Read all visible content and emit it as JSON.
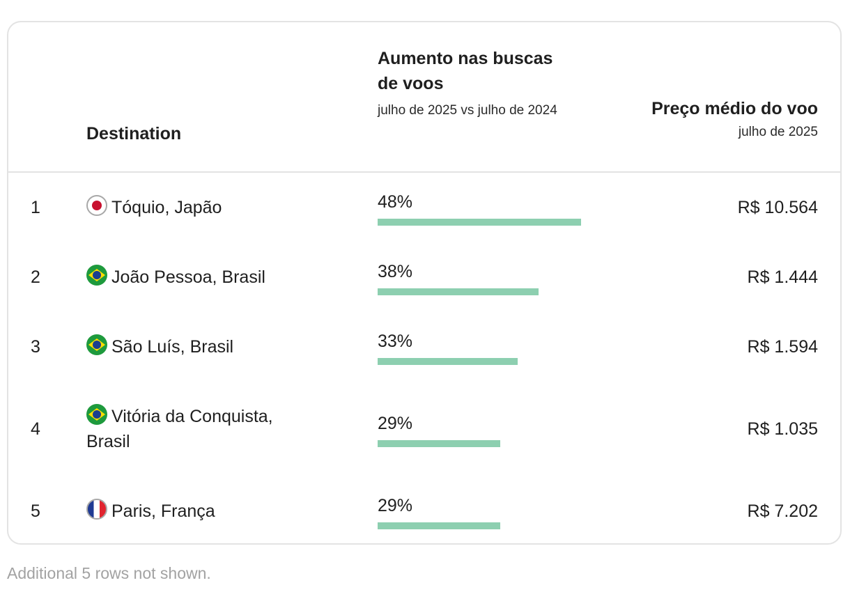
{
  "header": {
    "destination": "Destination",
    "growth_title": "Aumento nas buscas de voos",
    "growth_sub": "julho de 2025 vs julho de 2024",
    "price_title": "Preço médio do voo",
    "price_sub": "julho de 2025"
  },
  "rows": [
    {
      "rank": "1",
      "flag": "japan-flag-icon",
      "destination": "Tóquio, Japão",
      "growth": "48%",
      "growth_value": 48,
      "price": "R$ 10.564"
    },
    {
      "rank": "2",
      "flag": "brazil-flag-icon",
      "destination": "João Pessoa, Brasil",
      "growth": "38%",
      "growth_value": 38,
      "price": "R$ 1.444"
    },
    {
      "rank": "3",
      "flag": "brazil-flag-icon",
      "destination": "São Luís, Brasil",
      "growth": "33%",
      "growth_value": 33,
      "price": "R$ 1.594"
    },
    {
      "rank": "4",
      "flag": "brazil-flag-icon",
      "destination": "Vitória da Conquista, Brasil",
      "growth": "29%",
      "growth_value": 29,
      "price": "R$ 1.035"
    },
    {
      "rank": "5",
      "flag": "france-flag-icon",
      "destination": "Paris, França",
      "growth": "29%",
      "growth_value": 29,
      "price": "R$ 7.202"
    }
  ],
  "footnote": "Additional 5 rows not shown.",
  "colors": {
    "bar": "#8dcfb0",
    "border": "#e3e3e3",
    "footnote": "#a2a2a2"
  }
}
